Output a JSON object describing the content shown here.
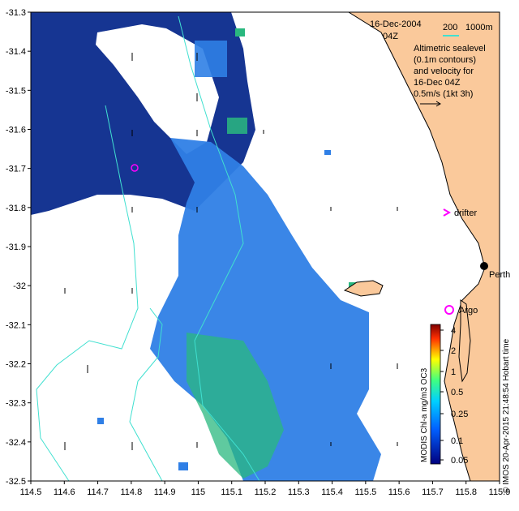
{
  "map": {
    "axes": {
      "x_ticks": [
        "114.5",
        "114.6",
        "114.7",
        "114.8",
        "114.9",
        "115",
        "115.1",
        "115.2",
        "115.3",
        "115.4",
        "115.5",
        "115.6",
        "115.7",
        "115.8",
        "115.9"
      ],
      "y_ticks": [
        "-31.3",
        "-31.4",
        "-31.5",
        "-31.6",
        "-31.7",
        "-31.8",
        "-31.9",
        "-32",
        "-32.1",
        "-32.2",
        "-32.3",
        "-32.4",
        "-32.5"
      ],
      "lon_range": [
        114.5,
        115.9
      ],
      "lat_range": [
        -32.5,
        -31.3
      ]
    },
    "header": {
      "date": "16-Dec-2004",
      "time": "04Z",
      "iso_200": "200",
      "iso_1000": "1000m",
      "iso_color": "#40e0d0"
    },
    "legend_text": {
      "line1": "Altimetric sealevel",
      "line2": "(0.1m contours)",
      "line3": "and velocity for",
      "line4": "16-Dec 04Z",
      "line5": "0.5m/s (1kt 3h)"
    },
    "labels": {
      "drifter": "drifter",
      "argo": "Argo",
      "perth": "Perth"
    },
    "colorbar": {
      "ticks": [
        "4",
        "2",
        "1",
        "0.5",
        "0.25",
        "0.1",
        "0.05"
      ],
      "title": "MODIS Chl-a mg/m3 OC3",
      "credit": "© IMOS 20-Apr-2015 21:48:54 Hobart time"
    },
    "colors": {
      "land": "#fac99b",
      "marker": "#ff00ff",
      "deep_blue": "#0a2a8c",
      "mid_blue": "#2f7fe6",
      "green": "#2ab87f",
      "cyan_line": "#40e0d0"
    }
  }
}
